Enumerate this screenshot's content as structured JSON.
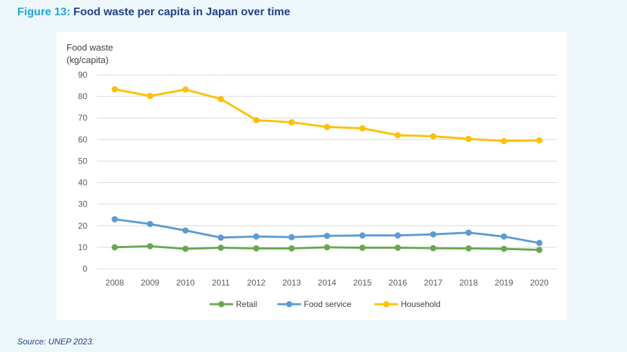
{
  "figure": {
    "number": "Figure 13:",
    "title": "Food waste per capita in Japan over time",
    "source": "Source: UNEP 2023."
  },
  "chart_data": {
    "type": "line",
    "ylabel_lines": [
      "Food waste",
      "(kg/capita)"
    ],
    "xlabel": "",
    "ylim": [
      0,
      90
    ],
    "yticks": [
      0,
      10,
      20,
      30,
      40,
      50,
      60,
      70,
      80,
      90
    ],
    "grid": true,
    "legend_position": "bottom-center",
    "x": [
      "2008",
      "2009",
      "2010",
      "2011",
      "2012",
      "2013",
      "2014",
      "2015",
      "2016",
      "2017",
      "2018",
      "2019",
      "2020"
    ],
    "series": [
      {
        "name": "Retail",
        "color": "#6aa84f",
        "values": [
          10,
          10.5,
          9.3,
          9.8,
          9.5,
          9.5,
          10,
          9.8,
          9.8,
          9.6,
          9.5,
          9.3,
          8.8
        ]
      },
      {
        "name": "Food service",
        "color": "#5b9bd5",
        "values": [
          23,
          20.8,
          17.8,
          14.5,
          15,
          14.7,
          15.3,
          15.5,
          15.5,
          16,
          16.8,
          15,
          12
        ]
      },
      {
        "name": "Household",
        "color": "#ffc000",
        "values": [
          83.3,
          80.2,
          83.2,
          78.8,
          69,
          68,
          65.8,
          65.2,
          62,
          61.5,
          60.3,
          59.3,
          59.6
        ]
      }
    ]
  }
}
